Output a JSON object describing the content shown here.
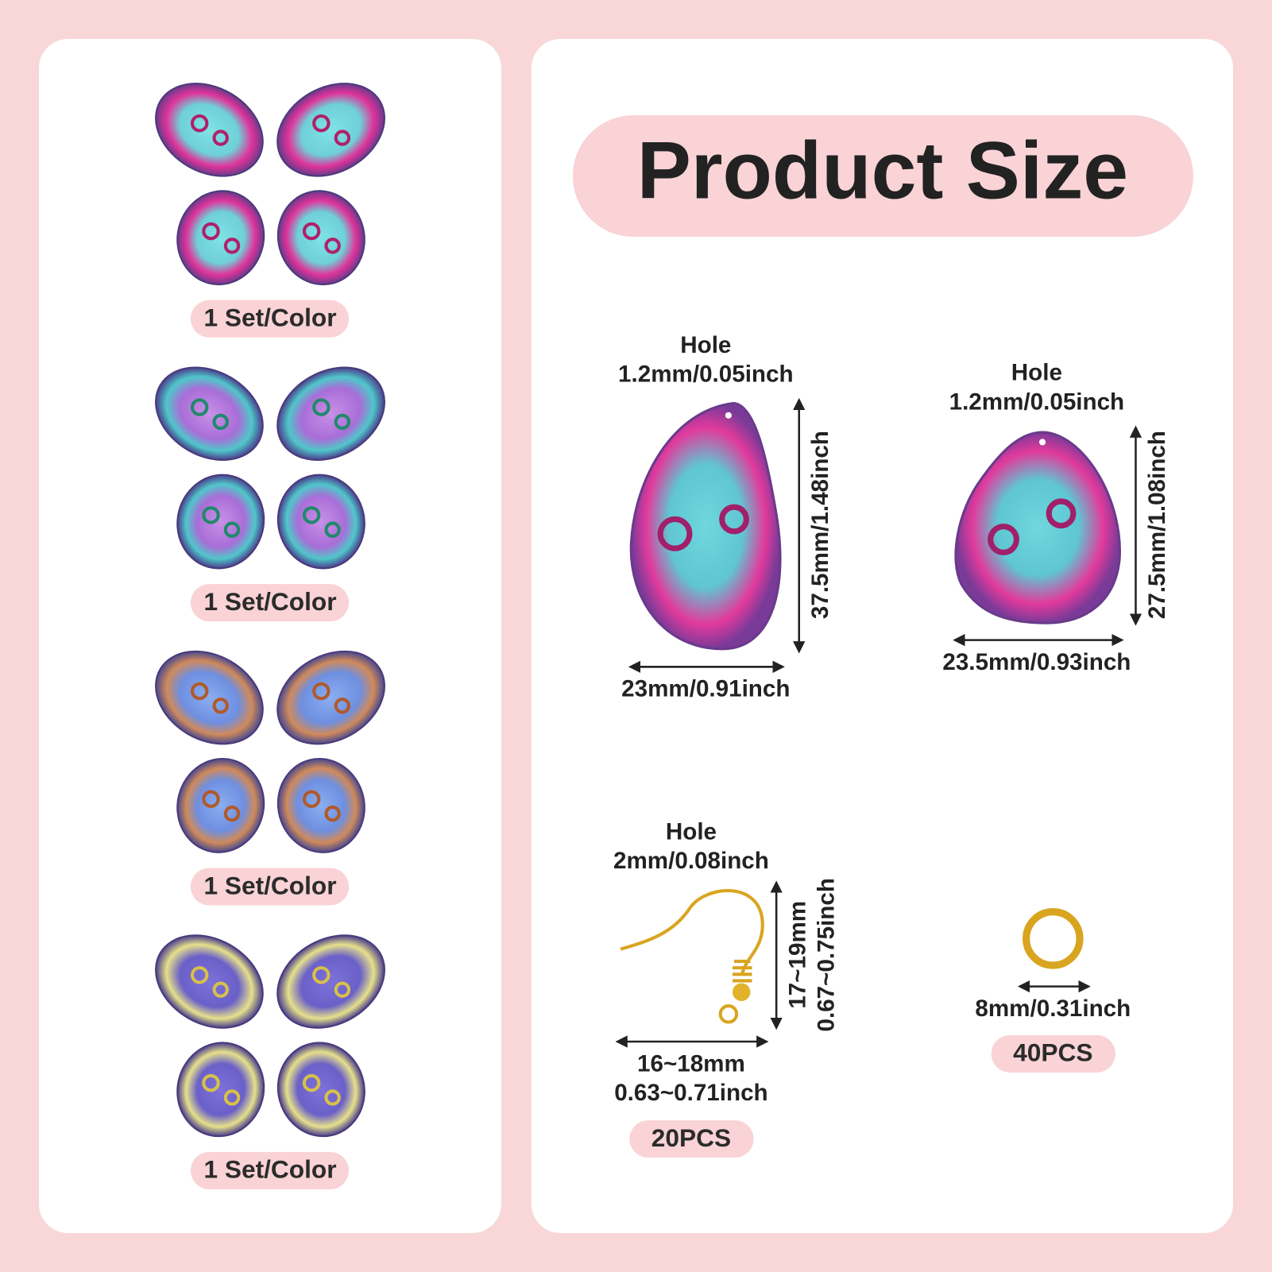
{
  "left_panel": {
    "sets": [
      "1 Set/Color",
      "1 Set/Color",
      "1 Set/Color",
      "1 Set/Color"
    ]
  },
  "right_panel": {
    "title": "Product Size",
    "items": [
      {
        "hole_title": "Hole",
        "hole_size": "1.2mm/0.05inch",
        "height": "37.5mm/1.48inch",
        "width": "23mm/0.91inch"
      },
      {
        "hole_title": "Hole",
        "hole_size": "1.2mm/0.05inch",
        "height": "27.5mm/1.08inch",
        "width": "23.5mm/0.93inch"
      },
      {
        "hole_title": "Hole",
        "hole_size": "2mm/0.08inch",
        "height": [
          "17~19mm",
          "0.67~0.75inch"
        ],
        "width": [
          "16~18mm",
          "0.63~0.71inch"
        ],
        "quantity": "20PCS"
      },
      {
        "width": "8mm/0.31inch",
        "quantity": "40PCS"
      }
    ]
  }
}
